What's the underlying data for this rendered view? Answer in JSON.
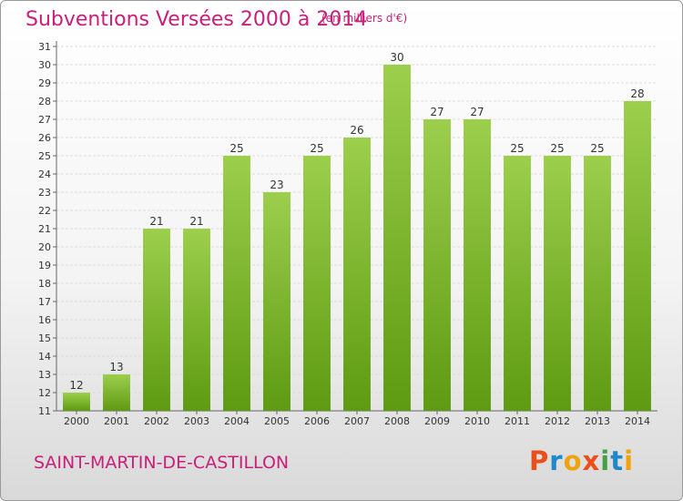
{
  "header": {
    "title": "Subventions Versées 2000 à 2014",
    "subtitle": "(en milliers d'€)"
  },
  "footer": {
    "commune": "SAINT-MARTIN-DE-CASTILLON",
    "logo_text": "Proxiti"
  },
  "colors": {
    "bar_top": "#9ccf4c",
    "bar_bottom": "#5e9a12",
    "title": "#c8207a",
    "logo": [
      "#e94e1b",
      "#1e88c9",
      "#f0a30a",
      "#e94e1b",
      "#43a047",
      "#1e88c9",
      "#f0a30a"
    ]
  },
  "chart_data": {
    "type": "bar",
    "title": "Subventions Versées 2000 à 2014",
    "subtitle": "(en milliers d'€)",
    "categories": [
      "2000",
      "2001",
      "2002",
      "2003",
      "2004",
      "2005",
      "2006",
      "2007",
      "2008",
      "2009",
      "2010",
      "2011",
      "2012",
      "2013",
      "2014"
    ],
    "values": [
      12,
      13,
      21,
      21,
      25,
      23,
      25,
      26,
      30,
      27,
      27,
      25,
      25,
      25,
      28
    ],
    "ylim": [
      11,
      31
    ],
    "yticks": [
      11,
      12,
      13,
      14,
      15,
      16,
      17,
      18,
      19,
      20,
      21,
      22,
      23,
      24,
      25,
      26,
      27,
      28,
      29,
      30,
      31
    ],
    "grid": true,
    "xlabel": "",
    "ylabel": ""
  }
}
